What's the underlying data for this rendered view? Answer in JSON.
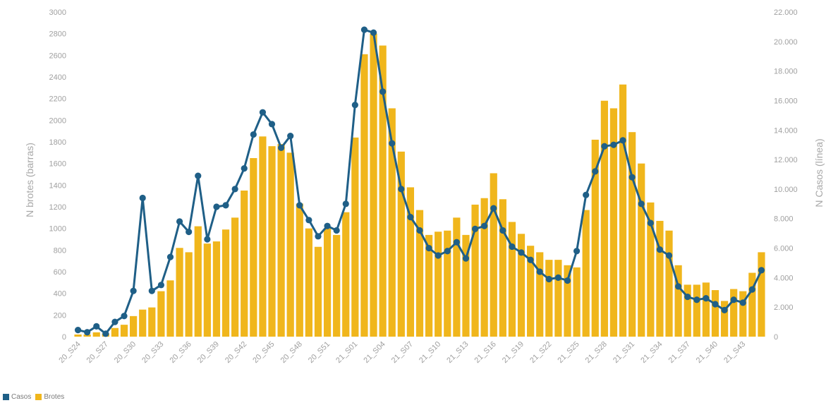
{
  "chart_data": {
    "type": "bar+line",
    "categories": [
      "20_S24",
      "20_S25",
      "20_S26",
      "20_S27",
      "20_S28",
      "20_S29",
      "20_S30",
      "20_S31",
      "20_S32",
      "20_S33",
      "20_S34",
      "20_S35",
      "20_S36",
      "20_S37",
      "20_S38",
      "20_S39",
      "20_S40",
      "20_S41",
      "20_S42",
      "20_S43",
      "20_S44",
      "20_S45",
      "20_S46",
      "20_S47",
      "20_S48",
      "20_S49",
      "20_S50",
      "20_S51",
      "20_S52",
      "20_S53",
      "21_S01",
      "21_S02",
      "21_S03",
      "21_S04",
      "21_S05",
      "21_S06",
      "21_S07",
      "21_S08",
      "21_S09",
      "21_S10",
      "21_S11",
      "21_S12",
      "21_S13",
      "21_S14",
      "21_S15",
      "21_S16",
      "21_S17",
      "21_S18",
      "21_S19",
      "21_S20",
      "21_S21",
      "21_S22",
      "21_S23",
      "21_S24",
      "21_S25",
      "21_S26",
      "21_S27",
      "21_S28",
      "21_S29",
      "21_S30",
      "21_S31",
      "21_S32",
      "21_S33",
      "21_S34",
      "21_S35",
      "21_S36",
      "21_S37",
      "21_S38",
      "21_S39",
      "21_S40",
      "21_S41",
      "21_S42",
      "21_S43",
      "21_S44",
      "21_S45"
    ],
    "x_tick_labels": [
      "20_S24",
      "20_S27",
      "20_S30",
      "20_S33",
      "20_S36",
      "20_S39",
      "20_S42",
      "20_S45",
      "20_S48",
      "20_S51",
      "21_S01",
      "21_S04",
      "21_S07",
      "21_S10",
      "21_S13",
      "21_S16",
      "21_S19",
      "21_S22",
      "21_S25",
      "21_S28",
      "21_S31",
      "21_S34",
      "21_S37",
      "21_S40",
      "21_S43"
    ],
    "series": [
      {
        "name": "Brotes",
        "axis": "left",
        "kind": "bar",
        "values": [
          20,
          20,
          40,
          30,
          80,
          110,
          190,
          250,
          270,
          420,
          520,
          820,
          780,
          1020,
          860,
          880,
          990,
          1100,
          1350,
          1650,
          1850,
          1760,
          1780,
          1700,
          1230,
          1000,
          830,
          1000,
          940,
          1150,
          1840,
          2610,
          2800,
          2690,
          2110,
          1710,
          1380,
          1170,
          940,
          970,
          980,
          1100,
          940,
          1220,
          1280,
          1510,
          1270,
          1060,
          950,
          840,
          780,
          710,
          710,
          660,
          640,
          1170,
          1820,
          2180,
          2110,
          2330,
          1890,
          1600,
          1240,
          1070,
          980,
          660,
          480,
          480,
          500,
          430,
          330,
          440,
          420,
          590,
          780
        ]
      },
      {
        "name": "Casos",
        "axis": "right",
        "kind": "line",
        "values": [
          450,
          300,
          700,
          200,
          1000,
          1400,
          3100,
          9400,
          3100,
          3500,
          5400,
          7800,
          7100,
          10900,
          6600,
          8800,
          8900,
          10000,
          11400,
          13700,
          15200,
          14400,
          12800,
          13600,
          8900,
          7900,
          6800,
          7500,
          7200,
          9000,
          15700,
          20800,
          20600,
          16600,
          13100,
          10000,
          8100,
          7200,
          6000,
          5500,
          5800,
          6400,
          5300,
          7300,
          7500,
          8700,
          7200,
          6100,
          5700,
          5200,
          4400,
          3900,
          4000,
          3800,
          5800,
          9600,
          11200,
          12900,
          13000,
          13300,
          10800,
          9000,
          7700,
          5900,
          5500,
          3400,
          2700,
          2500,
          2600,
          2200,
          1800,
          2500,
          2300,
          3200,
          4500
        ]
      }
    ],
    "ylabel_left": "N brotes (barras)",
    "ylabel_right": "N Casos (línea)",
    "ylim_left": [
      0,
      3000
    ],
    "ylim_right": [
      0,
      22000
    ],
    "left_ticks": [
      "0",
      "200",
      "400",
      "600",
      "800",
      "1000",
      "1200",
      "1400",
      "1600",
      "1800",
      "2000",
      "2200",
      "2400",
      "2600",
      "2800",
      "3000"
    ],
    "right_ticks": [
      "0",
      "2.000",
      "4.000",
      "6.000",
      "8.000",
      "10.000",
      "12.000",
      "14.000",
      "16.000",
      "18.000",
      "20.000",
      "22.000"
    ],
    "legend": [
      {
        "label": "Casos",
        "color": "#1f5f87"
      },
      {
        "label": "Brotes",
        "color": "#f0b61c"
      }
    ],
    "legend_position": "bottom-left",
    "colors": {
      "bars": "#f0b61c",
      "line": "#1f5f87",
      "marker": "#1f5f87"
    }
  }
}
